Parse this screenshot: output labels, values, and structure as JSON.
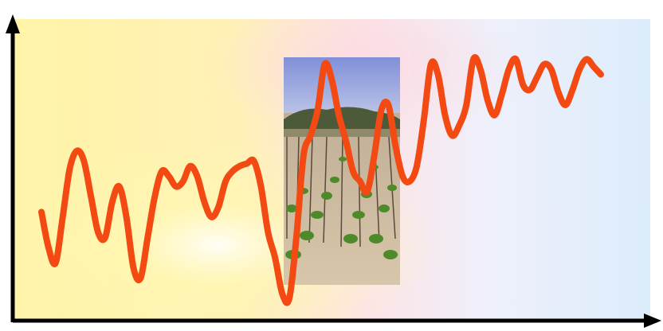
{
  "chart_data": {
    "type": "line",
    "title": "",
    "xlabel": "",
    "ylabel": "",
    "grid": false,
    "legend": "none",
    "axes": {
      "x_ticks": false,
      "y_ticks": false,
      "arrowheads": true
    },
    "colors": {
      "line": "#f24a12",
      "axis": "#000000",
      "background_warm": "#fff7a8",
      "background_pink": "#fde3e6",
      "background_blue": "#dcecfb"
    },
    "inset_image": "vineyard-photo",
    "x": [
      0,
      1,
      2,
      3,
      4,
      5,
      6,
      7,
      8,
      9,
      10,
      11,
      12,
      13,
      14,
      15,
      16,
      17,
      18,
      19,
      20,
      21,
      22,
      23,
      24,
      25,
      26,
      27,
      28,
      29,
      30,
      31,
      32,
      33,
      34,
      35,
      36,
      37,
      38,
      39,
      40,
      41,
      42,
      43,
      44,
      45,
      46,
      47,
      48,
      49,
      50,
      51,
      52,
      53,
      54,
      55,
      56,
      57,
      58,
      59,
      60,
      61,
      62,
      63,
      64,
      65,
      66,
      67,
      68,
      69,
      70,
      71,
      72,
      73,
      74,
      75,
      76,
      77,
      78,
      79
    ],
    "series": [
      {
        "values": [
          38,
          24,
          18,
          36,
          55,
          62,
          58,
          44,
          30,
          28,
          42,
          48,
          36,
          16,
          12,
          28,
          44,
          54,
          52,
          48,
          50,
          56,
          52,
          42,
          36,
          40,
          50,
          54,
          56,
          57,
          58,
          48,
          30,
          20,
          6,
          4,
          28,
          60,
          68,
          78,
          96,
          90,
          76,
          66,
          54,
          50,
          46,
          60,
          78,
          80,
          64,
          52,
          50,
          56,
          74,
          96,
          92,
          76,
          68,
          72,
          80,
          98,
          94,
          82,
          76,
          84,
          94,
          98,
          88,
          86,
          91,
          96,
          94,
          85,
          80,
          86,
          94,
          98,
          95,
          92
        ]
      }
    ],
    "ylim": [
      0,
      105
    ],
    "xlim": [
      0,
      79
    ]
  }
}
